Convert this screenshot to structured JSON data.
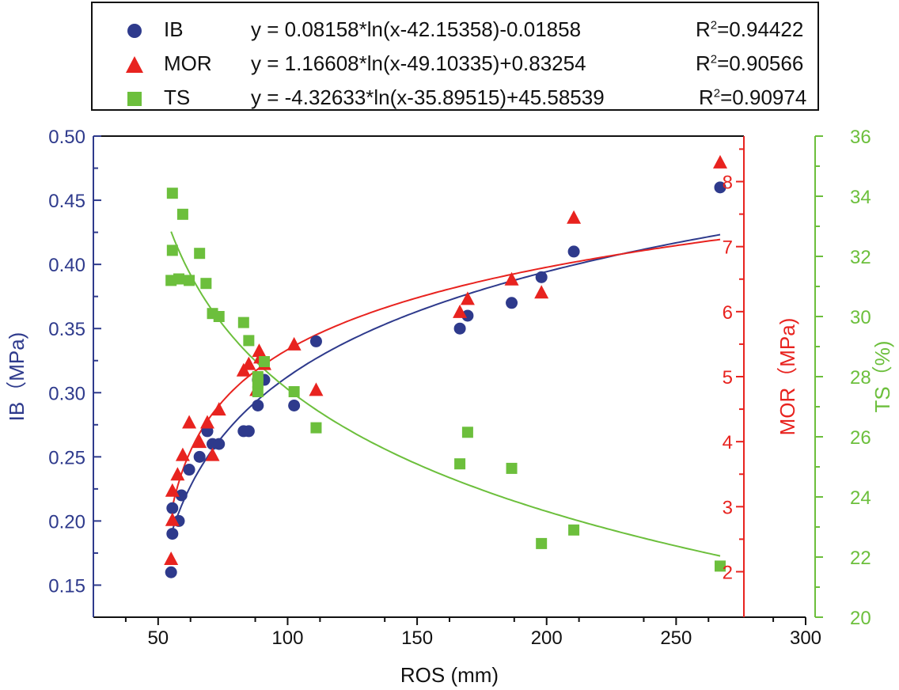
{
  "chart_data": {
    "type": "scatter",
    "xlabel": "ROS (mm)",
    "xlim": [
      25,
      300
    ],
    "xticks": [
      50,
      100,
      150,
      200,
      250,
      300
    ],
    "axes": {
      "IB": {
        "label": "IB（MPa)",
        "range": [
          0.125,
          0.5
        ],
        "ticks": [
          0.15,
          0.2,
          0.25,
          0.3,
          0.35,
          0.4,
          0.45,
          0.5
        ],
        "tick_labels": [
          "0.15",
          "0.20",
          "0.25",
          "0.30",
          "0.35",
          "0.40",
          "0.45",
          "0.50"
        ],
        "color": "#2e3a8c"
      },
      "MOR": {
        "label": "MOR（MPa)",
        "range": [
          1.3,
          8.7
        ],
        "ticks": [
          2,
          3,
          4,
          5,
          6,
          7,
          8
        ],
        "tick_labels": [
          "2",
          "3",
          "4",
          "5",
          "6",
          "7",
          "8"
        ],
        "color": "#e8231f"
      },
      "TS": {
        "label": "TS（%)",
        "range": [
          20,
          36
        ],
        "ticks": [
          20,
          22,
          24,
          26,
          28,
          30,
          32,
          34,
          36
        ],
        "tick_labels": [
          "20",
          "22",
          "24",
          "26",
          "28",
          "30",
          "32",
          "34",
          "36"
        ],
        "color": "#6cbf3c"
      }
    },
    "series": [
      {
        "name": "IB",
        "axis": "IB",
        "marker": "circle",
        "color": "#2e3a8c",
        "equation": "y =  0.08158*ln(x-42.15358)-0.01858",
        "r2_value": "=0.94422",
        "fit": {
          "a": 0.08158,
          "b": -42.15358,
          "c": -0.01858,
          "x_range": [
            55,
            267
          ]
        },
        "points": [
          [
            55,
            0.16
          ],
          [
            55.5,
            0.19
          ],
          [
            55.5,
            0.21
          ],
          [
            58,
            0.2
          ],
          [
            59,
            0.22
          ],
          [
            62,
            0.24
          ],
          [
            66,
            0.25
          ],
          [
            69,
            0.27
          ],
          [
            71,
            0.26
          ],
          [
            73.5,
            0.26
          ],
          [
            83,
            0.27
          ],
          [
            85,
            0.27
          ],
          [
            88.5,
            0.29
          ],
          [
            88.5,
            0.31
          ],
          [
            91,
            0.31
          ],
          [
            102.5,
            0.29
          ],
          [
            111,
            0.34
          ],
          [
            166.5,
            0.35
          ],
          [
            169.5,
            0.36
          ],
          [
            186.5,
            0.37
          ],
          [
            198,
            0.39
          ],
          [
            210.5,
            0.41
          ],
          [
            267,
            0.46
          ]
        ]
      },
      {
        "name": "MOR",
        "axis": "MOR",
        "marker": "triangle",
        "color": "#e8231f",
        "equation": "y = 1.16608*ln(x-49.10335)+0.83254",
        "r2_value": "=0.90566",
        "fit": {
          "a": 1.16608,
          "b": -49.10335,
          "c": 0.83254,
          "x_range": [
            55,
            267
          ]
        },
        "points": [
          [
            55,
            2.2
          ],
          [
            55.5,
            2.8
          ],
          [
            55.5,
            3.25
          ],
          [
            57.5,
            3.5
          ],
          [
            59.5,
            3.8
          ],
          [
            62,
            4.3
          ],
          [
            66,
            4.0
          ],
          [
            69,
            4.3
          ],
          [
            71,
            3.8
          ],
          [
            73.5,
            4.5
          ],
          [
            83,
            5.1
          ],
          [
            85,
            5.2
          ],
          [
            88,
            4.8
          ],
          [
            89,
            5.4
          ],
          [
            89.5,
            5.3
          ],
          [
            91,
            5.2
          ],
          [
            102.5,
            5.5
          ],
          [
            111,
            4.8
          ],
          [
            166.5,
            6.0
          ],
          [
            169.5,
            6.2
          ],
          [
            186.5,
            6.5
          ],
          [
            198,
            6.3
          ],
          [
            210.5,
            7.45
          ],
          [
            267,
            8.3
          ]
        ]
      },
      {
        "name": "TS",
        "axis": "TS",
        "marker": "square",
        "color": "#6cbf3c",
        "equation": "y = -4.32633*ln(x-35.89515)+45.58539",
        "r2_value": "=0.90974",
        "fit": {
          "a": -4.32633,
          "b": -35.89515,
          "c": 45.58539,
          "x_range": [
            55,
            267
          ]
        },
        "points": [
          [
            55,
            31.2
          ],
          [
            55.5,
            32.2
          ],
          [
            55.5,
            34.1
          ],
          [
            58,
            31.25
          ],
          [
            59.5,
            33.4
          ],
          [
            62,
            31.2
          ],
          [
            66,
            32.1
          ],
          [
            68.5,
            31.1
          ],
          [
            71,
            30.1
          ],
          [
            73.5,
            30.0
          ],
          [
            83,
            29.8
          ],
          [
            85,
            29.2
          ],
          [
            88.5,
            27.5
          ],
          [
            88.5,
            27.8
          ],
          [
            88.5,
            28.0
          ],
          [
            91,
            28.5
          ],
          [
            102.5,
            27.5
          ],
          [
            111,
            26.3
          ],
          [
            166.5,
            25.1
          ],
          [
            169.5,
            26.15
          ],
          [
            186.5,
            24.95
          ],
          [
            198,
            22.45
          ],
          [
            210.5,
            22.9
          ],
          [
            267,
            21.7
          ]
        ]
      }
    ]
  }
}
